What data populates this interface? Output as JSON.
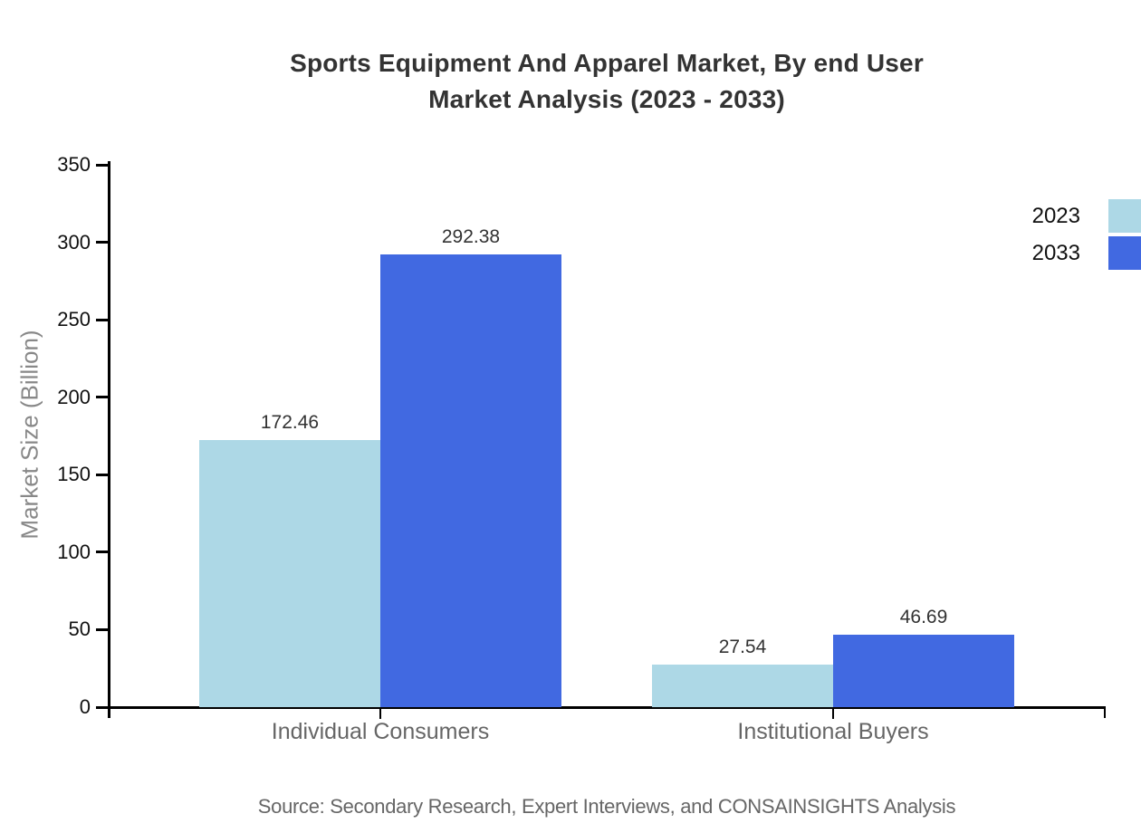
{
  "title": {
    "line1": "Sports Equipment And Apparel Market, By end User",
    "line2": "Market Analysis (2023 - 2033)"
  },
  "axes": {
    "y_title": "Market Size (Billion)"
  },
  "source": "Source: Secondary Research, Expert Interviews, and CONSAINSIGHTS Analysis",
  "colors": {
    "series_2023": "#ADD8E6",
    "series_2033": "#4169E1",
    "axis": "#000000",
    "title_text": "#333333",
    "tick_text": "#111111",
    "category_text": "#666666",
    "value_text": "#333333",
    "y_title_text": "#888888",
    "source_text": "#666666"
  },
  "chart_data": {
    "type": "bar",
    "categories": [
      "Individual Consumers",
      "Institutional Buyers"
    ],
    "series": [
      {
        "name": "2023",
        "values": [
          172.46,
          27.54
        ],
        "color": "#ADD8E6"
      },
      {
        "name": "2033",
        "values": [
          292.38,
          46.69
        ],
        "color": "#4169E1"
      }
    ],
    "title": "Sports Equipment And Apparel Market, By end User Market Analysis (2023 - 2033)",
    "xlabel": "",
    "ylabel": "Market Size (Billion)",
    "ylim": [
      0,
      350
    ],
    "yticks": [
      0,
      50,
      100,
      150,
      200,
      250,
      300,
      350
    ],
    "grid": false,
    "legend_position": "top-right",
    "value_labels": true
  }
}
